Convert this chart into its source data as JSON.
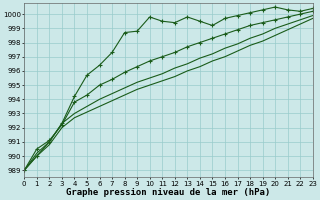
{
  "xlabel": "Graphe pression niveau de la mer (hPa)",
  "xlim": [
    0,
    23
  ],
  "ylim": [
    988.5,
    1000.8
  ],
  "yticks": [
    989,
    990,
    991,
    992,
    993,
    994,
    995,
    996,
    997,
    998,
    999,
    1000
  ],
  "xticks": [
    0,
    1,
    2,
    3,
    4,
    5,
    6,
    7,
    8,
    9,
    10,
    11,
    12,
    13,
    14,
    15,
    16,
    17,
    18,
    19,
    20,
    21,
    22,
    23
  ],
  "bg_color": "#cce8e8",
  "grid_color": "#99cccc",
  "line_color": "#1a5c1a",
  "series1": [
    989.0,
    990.0,
    991.0,
    992.3,
    994.2,
    995.7,
    996.4,
    997.3,
    998.7,
    998.8,
    999.8,
    999.5,
    999.4,
    999.8,
    999.5,
    999.2,
    999.7,
    999.9,
    1000.1,
    1000.3,
    1000.5,
    1000.3,
    1000.2,
    1000.4
  ],
  "series2": [
    989.0,
    990.5,
    991.1,
    992.2,
    993.8,
    994.3,
    995.0,
    995.4,
    995.9,
    996.3,
    996.7,
    997.0,
    997.3,
    997.7,
    998.0,
    998.3,
    998.6,
    998.9,
    999.2,
    999.4,
    999.6,
    999.8,
    1000.0,
    1000.2
  ],
  "series3": [
    989.0,
    990.2,
    991.0,
    992.3,
    993.0,
    993.5,
    994.0,
    994.4,
    994.8,
    995.2,
    995.5,
    995.8,
    996.2,
    996.5,
    996.9,
    997.2,
    997.6,
    997.9,
    998.3,
    998.6,
    999.0,
    999.3,
    999.6,
    999.9
  ],
  "series4": [
    989.0,
    990.0,
    990.8,
    992.0,
    992.7,
    993.1,
    993.5,
    993.9,
    994.3,
    994.7,
    995.0,
    995.3,
    995.6,
    996.0,
    996.3,
    996.7,
    997.0,
    997.4,
    997.8,
    998.1,
    998.5,
    998.9,
    999.3,
    999.7
  ],
  "marker": "+",
  "markersize": 3,
  "linewidth": 0.8,
  "tick_fontsize": 5,
  "xlabel_fontsize": 6.5
}
